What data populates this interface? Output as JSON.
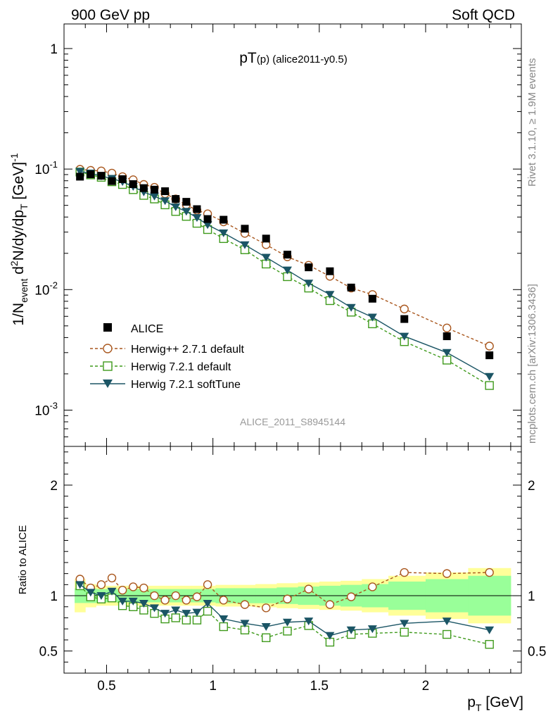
{
  "header": {
    "left": "900 GeV pp",
    "right": "Soft QCD"
  },
  "side_text": {
    "rivet": "Rivet 3.1.10, ≥ 1.9M events",
    "mcplots": "mcplots.cern.ch [arXiv:1306.3436]"
  },
  "chart_data": [
    {
      "type": "scatter",
      "title_main": "pT",
      "title_sub": "(p)",
      "title_rest": " (alice2011-y0.5)",
      "analysis_id": "ALICE_2011_S8945144",
      "ylabel": {
        "a": "1/N",
        "a_sub": "event",
        "b": " d",
        "b_sup": "2",
        "c": "N/dy/dp",
        "c_sub": "T",
        "d": " [GeV]",
        "d_sup": "-1"
      },
      "yscale": "log",
      "ylim": [
        0.0005,
        1.6
      ],
      "xlim": [
        0.3,
        2.45
      ],
      "ytick_labels": [
        {
          "value": 1,
          "base": "1",
          "exp": ""
        },
        {
          "value": 0.1,
          "base": "10",
          "exp": "-1"
        },
        {
          "value": 0.01,
          "base": "10",
          "exp": "-2"
        },
        {
          "value": 0.001,
          "base": "10",
          "exp": "-3"
        }
      ],
      "x": [
        0.375,
        0.425,
        0.475,
        0.525,
        0.575,
        0.625,
        0.675,
        0.725,
        0.775,
        0.825,
        0.875,
        0.925,
        0.975,
        1.05,
        1.15,
        1.25,
        1.35,
        1.45,
        1.55,
        1.65,
        1.75,
        1.9,
        2.1,
        2.3
      ],
      "series": [
        {
          "name": "ALICE",
          "color": "#000000",
          "marker": "filled-square",
          "line": "none",
          "values": [
            0.0865,
            0.0905,
            0.088,
            0.0795,
            0.0825,
            0.075,
            0.0695,
            0.0675,
            0.0655,
            0.0565,
            0.0535,
            0.0465,
            0.0385,
            0.038,
            0.032,
            0.0265,
            0.0195,
            0.0153,
            0.0142,
            0.0104,
            0.0084,
            0.0057,
            0.0041,
            0.00285
          ]
        },
        {
          "name": "Herwig++ 2.7.1 default",
          "color": "#a9571e",
          "marker": "open-circle",
          "line": "dashed",
          "values": [
            0.0995,
            0.0975,
            0.0965,
            0.0925,
            0.0865,
            0.0815,
            0.0745,
            0.0705,
            0.0625,
            0.0565,
            0.0505,
            0.0455,
            0.0425,
            0.0365,
            0.0293,
            0.0236,
            0.0187,
            0.0159,
            0.0129,
            0.0103,
            0.0091,
            0.0069,
            0.0048,
            0.0034
          ]
        },
        {
          "name": "Herwig 7.2.1 default",
          "color": "#3f9a1c",
          "marker": "open-square",
          "line": "dashed",
          "values": [
            0.0945,
            0.0895,
            0.0855,
            0.0785,
            0.0745,
            0.0675,
            0.0605,
            0.0565,
            0.0505,
            0.0445,
            0.0405,
            0.0355,
            0.0315,
            0.0265,
            0.0214,
            0.0163,
            0.0128,
            0.0103,
            0.0081,
            0.0065,
            0.0052,
            0.0037,
            0.0026,
            0.0016
          ]
        },
        {
          "name": "Herwig 7.2.1 softTune",
          "color": "#1b5565",
          "marker": "filled-triangle-down",
          "line": "solid",
          "values": [
            0.0955,
            0.0925,
            0.0875,
            0.0835,
            0.0785,
            0.0715,
            0.0645,
            0.0595,
            0.0545,
            0.0485,
            0.0445,
            0.0395,
            0.0345,
            0.0295,
            0.0235,
            0.0185,
            0.0145,
            0.0113,
            0.0091,
            0.0071,
            0.0059,
            0.0041,
            0.003,
            0.0019
          ]
        }
      ],
      "legend_placement": "lower-left"
    },
    {
      "type": "scatter",
      "ylabel": "Ratio to ALICE",
      "xlabel": {
        "a": "p",
        "a_sub": "T",
        "b": " [GeV]"
      },
      "ylim": [
        0.3,
        2.35
      ],
      "xlim": [
        0.3,
        2.45
      ],
      "yticks": [
        0.5,
        1,
        2
      ],
      "ytick_labels": [
        "0.5",
        "1",
        "2"
      ],
      "xticks": [
        0.5,
        1,
        1.5,
        2
      ],
      "xtick_labels": [
        "0.5",
        "1",
        "1.5",
        "2"
      ],
      "x": [
        0.375,
        0.425,
        0.475,
        0.525,
        0.575,
        0.625,
        0.675,
        0.725,
        0.775,
        0.825,
        0.875,
        0.925,
        0.975,
        1.05,
        1.15,
        1.25,
        1.35,
        1.45,
        1.55,
        1.65,
        1.75,
        1.9,
        2.1,
        2.3
      ],
      "band_inner_halfwidth": [
        0.066,
        0.066,
        0.06,
        0.06,
        0.06,
        0.06,
        0.06,
        0.06,
        0.06,
        0.06,
        0.06,
        0.06,
        0.06,
        0.068,
        0.068,
        0.068,
        0.075,
        0.083,
        0.09,
        0.098,
        0.105,
        0.128,
        0.15,
        0.18
      ],
      "band_outer_halfwidth": [
        0.15,
        0.105,
        0.09,
        0.09,
        0.09,
        0.09,
        0.09,
        0.09,
        0.09,
        0.09,
        0.09,
        0.09,
        0.09,
        0.098,
        0.098,
        0.105,
        0.113,
        0.12,
        0.128,
        0.135,
        0.15,
        0.18,
        0.21,
        0.25
      ],
      "band_inner_color": "#99ff99",
      "band_outer_color": "#ffff99",
      "series": [
        {
          "name": "Herwig++ 2.7.1 default",
          "color": "#a9571e",
          "marker": "open-circle",
          "line": "dashed",
          "values": [
            1.15,
            1.07,
            1.1,
            1.16,
            1.05,
            1.08,
            1.07,
            1.0,
            0.96,
            1.0,
            0.96,
            0.99,
            1.1,
            0.96,
            0.92,
            0.89,
            0.97,
            1.06,
            0.92,
            0.99,
            1.08,
            1.21,
            1.2,
            1.21
          ]
        },
        {
          "name": "Herwig 7.2.1 default",
          "color": "#3f9a1c",
          "marker": "open-square",
          "line": "dashed",
          "values": [
            1.09,
            0.99,
            0.97,
            0.98,
            0.91,
            0.9,
            0.87,
            0.84,
            0.79,
            0.8,
            0.78,
            0.78,
            0.86,
            0.72,
            0.69,
            0.62,
            0.68,
            0.73,
            0.58,
            0.65,
            0.66,
            0.67,
            0.65,
            0.56
          ]
        },
        {
          "name": "Herwig 7.2.1 softTune",
          "color": "#1b5565",
          "marker": "filled-triangle-down",
          "line": "solid",
          "values": [
            1.1,
            1.03,
            1.0,
            1.04,
            0.95,
            0.95,
            0.93,
            0.89,
            0.84,
            0.87,
            0.84,
            0.85,
            0.93,
            0.79,
            0.75,
            0.72,
            0.76,
            0.77,
            0.64,
            0.69,
            0.7,
            0.75,
            0.77,
            0.69
          ]
        }
      ]
    }
  ]
}
